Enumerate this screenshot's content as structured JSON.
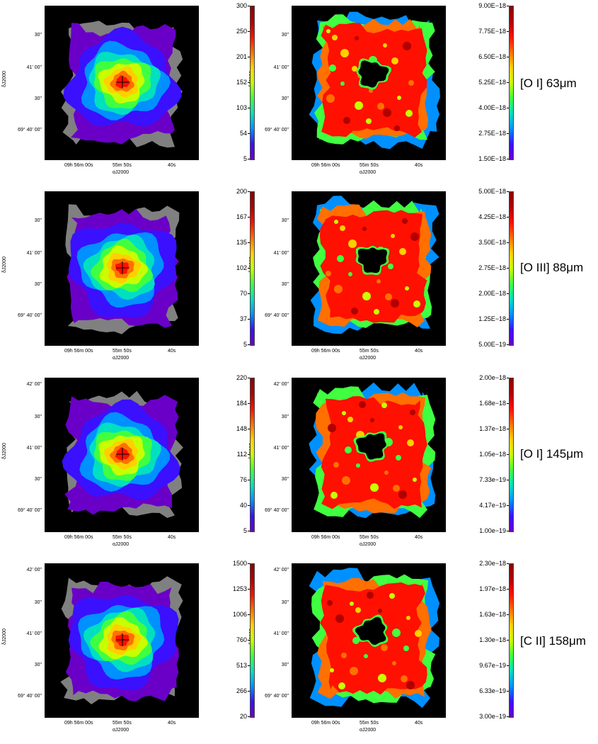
{
  "colors": {
    "colormap": [
      "#6a00c8",
      "#3a10ff",
      "#0090ff",
      "#00e0c0",
      "#40ff40",
      "#c8ff00",
      "#ffd000",
      "#ff7000",
      "#ff1000",
      "#b00000",
      "#8b0000"
    ],
    "background": "#000000",
    "masked": "#808080"
  },
  "common": {
    "x_ticks": [
      "09h 56m 00s",
      "55m 50s",
      "40s"
    ],
    "x_title": "αJ2000",
    "y_title": "δJ2000"
  },
  "rows": [
    {
      "line_label": "[O I] 63μm",
      "left_y_ticks": [
        "30\"",
        "41' 00\"",
        "30\"",
        "69° 40' 00\""
      ],
      "right_y_ticks": [
        "30\"",
        "41' 00\"",
        "30\"",
        "69° 40' 00\""
      ],
      "left_colorbar": [
        "300",
        "250",
        "201",
        "152",
        "103",
        "54",
        "5"
      ],
      "right_colorbar": [
        "9.00E−18",
        "7.75E−18",
        "6.50E−18",
        "5.25E−18",
        "4.00E−18",
        "2.75E−18",
        "1.50E−18"
      ]
    },
    {
      "line_label": "[O III] 88μm",
      "left_y_ticks": [
        "30\"",
        "41' 00\"",
        "30\"",
        "69° 40' 00\""
      ],
      "right_y_ticks": [
        "30\"",
        "41' 00\"",
        "30\"",
        "69° 40' 00\""
      ],
      "left_colorbar": [
        "200",
        "167",
        "135",
        "102",
        "70",
        "37",
        "5"
      ],
      "right_colorbar": [
        "5.00E−18",
        "4.25E−18",
        "3.50E−18",
        "2.75E−18",
        "2.00E−18",
        "1.25E−18",
        "5.00E−19"
      ]
    },
    {
      "line_label": "[O I] 145μm",
      "left_y_ticks": [
        "42' 00\"",
        "30\"",
        "41' 00\"",
        "30\"",
        "69° 40' 00\""
      ],
      "right_y_ticks": [
        "42' 00\"",
        "30\"",
        "41' 00\"",
        "30\"",
        "69° 40' 00\""
      ],
      "left_colorbar": [
        "220",
        "184",
        "148",
        "112",
        "76",
        "40",
        "5"
      ],
      "right_colorbar": [
        "2.00e−18",
        "1.68e−18",
        "1.37e−18",
        "1.05e−18",
        "7.33e−19",
        "4.17e−19",
        "1.00e−19"
      ]
    },
    {
      "line_label": "[C II] 158μm",
      "left_y_ticks": [
        "42' 00\"",
        "30\"",
        "41' 00\"",
        "30\"",
        "69° 40' 00\""
      ],
      "right_y_ticks": [
        "42' 00\"",
        "30\"",
        "41' 00\"",
        "30\"",
        "69° 40' 00\""
      ],
      "left_colorbar": [
        "1500",
        "1253",
        "1006",
        "760",
        "513",
        "266",
        "20"
      ],
      "right_colorbar": [
        "2.30e−18",
        "1.97e−18",
        "1.63e−18",
        "1.30e−18",
        "9.67e−19",
        "6.33e−19",
        "3.00e−19"
      ]
    }
  ]
}
